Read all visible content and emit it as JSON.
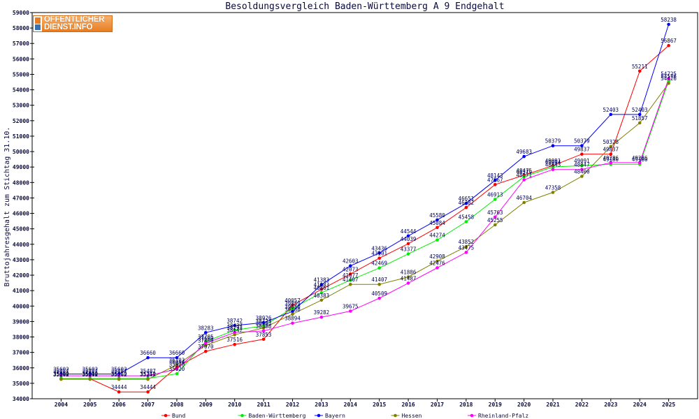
{
  "logo": {
    "line1": "ÖFFENTLICHER",
    "line2": "DIENST.INFO"
  },
  "chart_data": {
    "type": "line",
    "title": "Besoldungsvergleich Baden-Württemberg A 9 Endgehalt",
    "ylabel": "Bruttojahresgehalt zum Stichtag 31.10.",
    "x": [
      2004,
      2005,
      2006,
      2007,
      2008,
      2009,
      2010,
      2011,
      2012,
      2013,
      2014,
      2015,
      2016,
      2017,
      2018,
      2019,
      2020,
      2021,
      2022,
      2023,
      2024,
      2025
    ],
    "xlim": [
      2003,
      2026
    ],
    "ylim": [
      34000,
      59000
    ],
    "yticks": [
      34000,
      35000,
      36000,
      37000,
      38000,
      39000,
      40000,
      41000,
      42000,
      43000,
      44000,
      45000,
      46000,
      47000,
      48000,
      49000,
      50000,
      51000,
      52000,
      53000,
      54000,
      55000,
      56000,
      57000,
      58000,
      59000
    ],
    "grid": false,
    "legend": "bottom",
    "series": [
      {
        "name": "Bund",
        "color": "#ff0000",
        "values": [
          35292,
          35292,
          34444,
          34444,
          36054,
          37070,
          37516,
          37853,
          40057,
          41083,
          42073,
          43101,
          44039,
          45084,
          46382,
          47867,
          48475,
          49091,
          49837,
          49837,
          55211,
          56867
        ]
      },
      {
        "name": "Baden-Württemberg",
        "color": "#00ee00",
        "values": [
          35310,
          35310,
          35310,
          35310,
          35620,
          37705,
          38437,
          38723,
          39859,
          40861,
          41677,
          42469,
          43377,
          44274,
          45458,
          46913,
          48379,
          49004,
          49091,
          49180,
          49180,
          54576
        ]
      },
      {
        "name": "Bayern",
        "color": "#0000ff",
        "values": [
          35602,
          35602,
          35602,
          36660,
          36660,
          38283,
          38742,
          38926,
          39650,
          41383,
          42603,
          43436,
          44544,
          45580,
          46651,
          48143,
          49683,
          50379,
          50379,
          52403,
          52403,
          58238
        ]
      },
      {
        "name": "Hessen",
        "color": "#808000",
        "values": [
          35262,
          35262,
          35262,
          35262,
          36193,
          37460,
          38147,
          38583,
          39480,
          40383,
          41407,
          41407,
          41886,
          42908,
          43852,
          45255,
          46704,
          47358,
          48400,
          50328,
          51857,
          54426
        ]
      },
      {
        "name": "Rheinland-Pfalz",
        "color": "#ff00ff",
        "values": [
          35487,
          35487,
          35487,
          35487,
          35920,
          37600,
          38292,
          38388,
          38894,
          39282,
          39675,
          40509,
          41487,
          42476,
          43475,
          45763,
          48171,
          48843,
          48847,
          49286,
          49286,
          54725
        ]
      }
    ]
  }
}
